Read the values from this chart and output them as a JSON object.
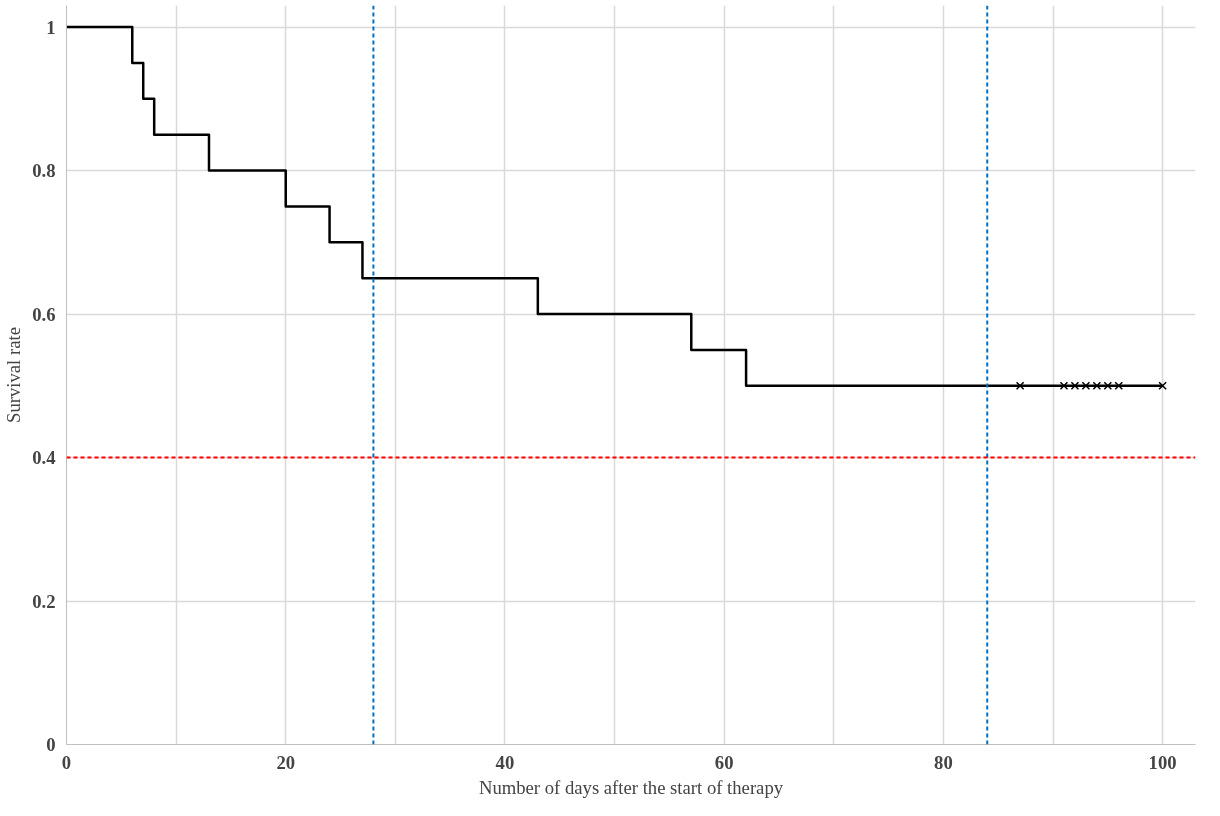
{
  "chart_data": {
    "type": "step",
    "xlabel": "Number of days after the start of therapy",
    "ylabel": "Survival rate",
    "series": [
      {
        "color": "#000000",
        "x": [
          0,
          6,
          7,
          8,
          13,
          20,
          24,
          27,
          43,
          57,
          62,
          100
        ],
        "values": [
          1,
          0.95,
          0.9,
          0.85,
          0.8,
          0.75,
          0.7,
          0.65,
          0.6,
          0.55,
          0.5,
          0.5
        ]
      },
      {
        "type": "scatter",
        "color": "#000000",
        "x": [
          87,
          91,
          92,
          93,
          94,
          95,
          96,
          100
        ],
        "values": [
          0.5,
          0.5,
          0.5,
          0.5,
          0.5,
          0.5,
          0.5,
          0.5
        ],
        "marker": "cross"
      }
    ],
    "xlim": [
      0,
      103
    ],
    "ylim": [
      0,
      1.03
    ],
    "xticks": [
      0,
      {
        "value": 10,
        "label": null
      },
      20,
      {
        "value": 30,
        "label": null
      },
      40,
      {
        "value": 50,
        "label": null
      },
      60,
      {
        "value": 70,
        "label": null
      },
      80,
      {
        "value": 90,
        "label": null
      },
      100
    ],
    "yticks": [
      0,
      0.2,
      0.4,
      0.6,
      0.8,
      1
    ],
    "ref_lines": [
      {
        "axis": "x",
        "value": 28,
        "color": "#0070c0",
        "line_style": "dashed"
      },
      {
        "axis": "x",
        "value": 84,
        "color": "#0070c0",
        "line_style": "dashed"
      },
      {
        "axis": "y",
        "value": 0.4,
        "color": "#ff0000",
        "line_style": "dashed"
      }
    ],
    "grid": true
  }
}
